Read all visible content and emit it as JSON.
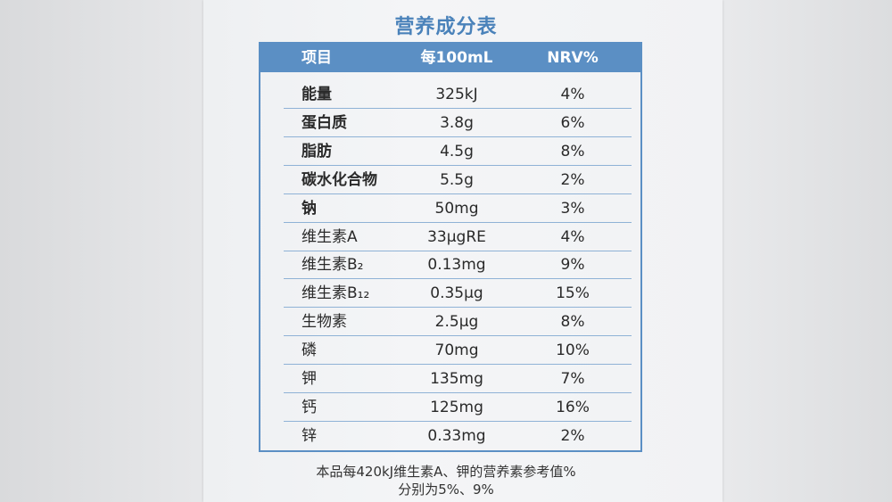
{
  "title": "营养成分表",
  "table": {
    "header": [
      "项目",
      "每100mL",
      "NRV%"
    ],
    "rows": [
      [
        "能量",
        "325kJ",
        "4%"
      ],
      [
        "蛋白质",
        "3.8g",
        "6%"
      ],
      [
        "脂肪",
        "4.5g",
        "8%"
      ],
      [
        "碳水化合物",
        "5.5g",
        "2%"
      ],
      [
        "钠",
        "50mg",
        "3%"
      ],
      [
        "维生素A",
        "33μgRE",
        "4%"
      ],
      [
        "维生素B₂",
        "0.13mg",
        "9%"
      ],
      [
        "维生素B₁₂",
        "0.35μg",
        "15%"
      ],
      [
        "生物素",
        "2.5μg",
        "8%"
      ],
      [
        "磷",
        "70mg",
        "10%"
      ],
      [
        "钾",
        "135mg",
        "7%"
      ],
      [
        "钙",
        "125mg",
        "16%"
      ],
      [
        "锌",
        "0.33mg",
        "2%"
      ]
    ],
    "bold_rows": 5
  },
  "footnote": [
    "本品每420kJ维生素A、钾的营养素参考值%",
    "分别为5%、9%"
  ]
}
